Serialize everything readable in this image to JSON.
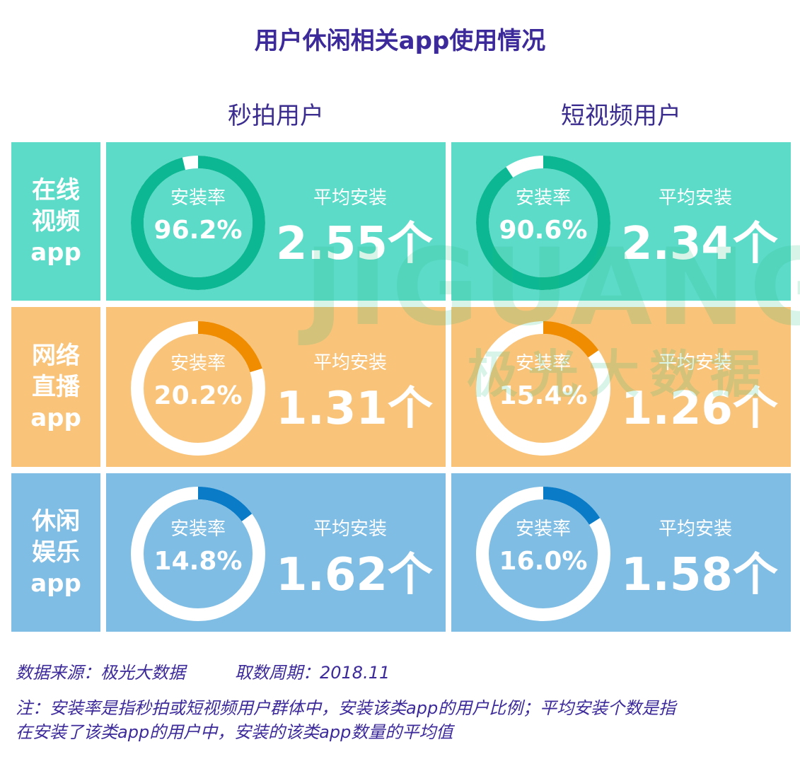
{
  "title": "用户休闲相关app使用情况",
  "columns": [
    "秒拍用户",
    "短视频用户"
  ],
  "rate_label": "安装率",
  "avg_label": "平均安装",
  "unit": "个",
  "colors": {
    "title": "#3d2a9a",
    "teal_bg": "#5cdbc9",
    "teal_arc": "#0cb893",
    "orange_bg": "#f9c47a",
    "orange_arc": "#f08c00",
    "blue_bg": "#7fbde4",
    "blue_arc": "#0a7cc7"
  },
  "chart_data": {
    "type": "pie",
    "subtype": "donut-grid",
    "title": "用户休闲相关app使用情况",
    "columns": [
      "秒拍用户",
      "短视频用户"
    ],
    "rows": [
      {
        "label": "在线\n视频\napp",
        "rate": [
          "96.2%",
          "90.6%"
        ],
        "rate_values": [
          96.2,
          90.6
        ],
        "avg": [
          "2.55",
          "2.34"
        ],
        "theme": "teal"
      },
      {
        "label": "网络\n直播\napp",
        "rate": [
          "20.2%",
          "15.4%"
        ],
        "rate_values": [
          20.2,
          15.4
        ],
        "avg": [
          "1.31",
          "1.26"
        ],
        "theme": "orange"
      },
      {
        "label": "休闲\n娱乐\napp",
        "rate": [
          "14.8%",
          "16.0%"
        ],
        "rate_values": [
          14.8,
          16.0
        ],
        "avg": [
          "1.62",
          "1.58"
        ],
        "theme": "blue"
      }
    ]
  },
  "watermark": {
    "text": "JIGUANG",
    "cn": "极光大数据"
  },
  "footer": {
    "source": "数据来源：极光大数据",
    "period": "取数周期：2018.11",
    "note": "注：安装率是指秒拍或短视频用户群体中，安装该类app的用户比例；平均安装个数是指\n在安装了该类app的用户中，安装的该类app数量的平均值"
  }
}
